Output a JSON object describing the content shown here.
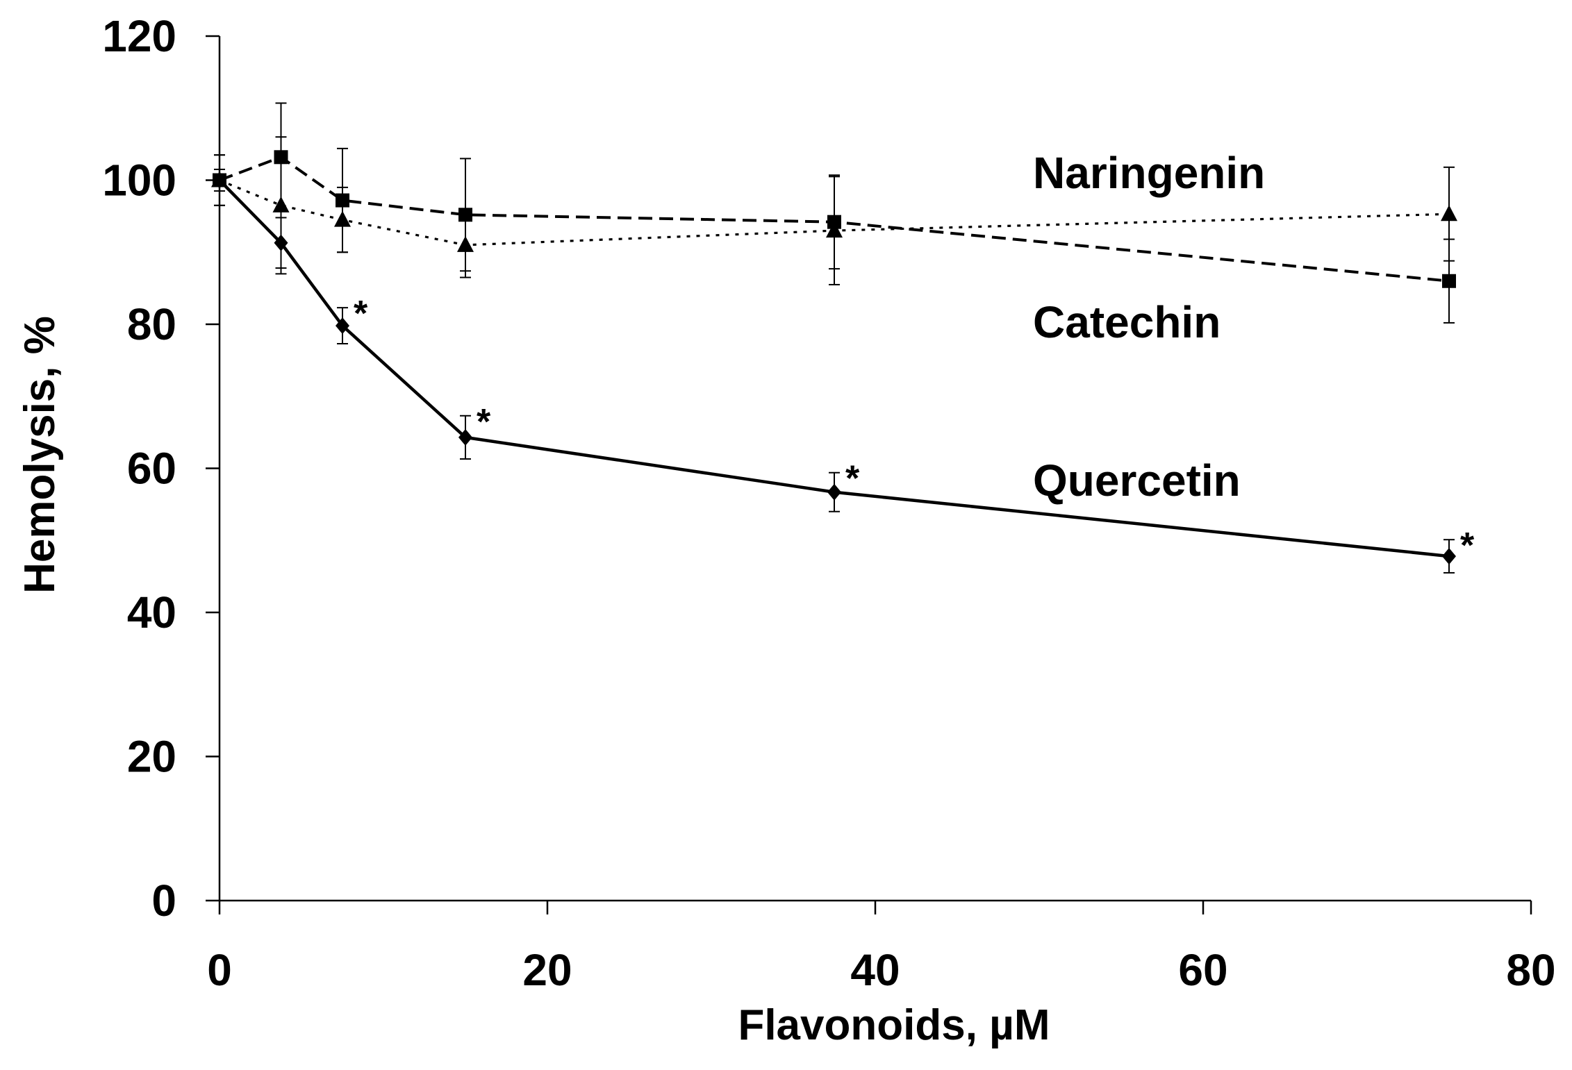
{
  "chart_data": {
    "type": "line",
    "title": "",
    "xlabel": "Flavonoids, µM",
    "ylabel": "Hemolysis, %",
    "xlim": [
      0,
      80
    ],
    "ylim": [
      0,
      120
    ],
    "xticks": [
      0,
      20,
      40,
      60,
      80
    ],
    "yticks": [
      0,
      20,
      40,
      60,
      80,
      100,
      120
    ],
    "grid": false,
    "legend": "inline labels at right",
    "series": [
      {
        "name": "Naringenin",
        "marker": "triangle",
        "line_style": "dotted",
        "x": [
          0,
          3.75,
          7.5,
          15,
          37.5,
          75
        ],
        "y": [
          100,
          96.5,
          94.5,
          91,
          93,
          95.3
        ],
        "err": [
          3.5,
          9.5,
          4.5,
          4.5,
          7.5,
          6.5
        ],
        "significance": [
          "",
          "",
          "",
          "",
          "",
          ""
        ]
      },
      {
        "name": "Catechin",
        "marker": "square",
        "line_style": "dashed",
        "x": [
          0,
          3.75,
          7.5,
          15,
          37.5,
          75
        ],
        "y": [
          100,
          103.2,
          97.2,
          95.2,
          94.2,
          86
        ],
        "err": [
          3.5,
          7.5,
          7.2,
          7.8,
          6.5,
          5.8
        ],
        "significance": [
          "",
          "",
          "",
          "",
          "",
          ""
        ]
      },
      {
        "name": "Quercetin",
        "marker": "diamond",
        "line_style": "solid",
        "x": [
          0,
          3.75,
          7.5,
          15,
          37.5,
          75
        ],
        "y": [
          100,
          91.3,
          79.8,
          64.3,
          56.7,
          47.8
        ],
        "err": [
          1.5,
          3.5,
          2.5,
          3,
          2.7,
          2.3
        ],
        "significance": [
          "",
          "",
          "*",
          "*",
          "*",
          "*"
        ]
      }
    ]
  }
}
